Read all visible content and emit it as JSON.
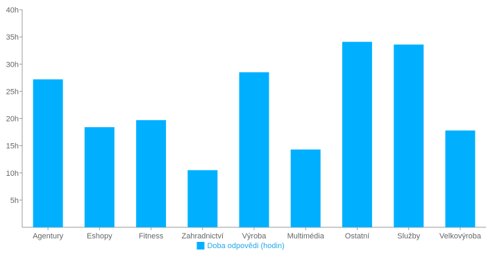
{
  "chart_data": {
    "type": "bar",
    "categories": [
      "Agentury",
      "Eshopy",
      "Fitness",
      "Zahradnictví",
      "Výroba",
      "Multimédia",
      "Ostatní",
      "Služby",
      "Velkovýroba"
    ],
    "series": [
      {
        "name": "Doba odpovědi (hodin)",
        "values": [
          27.2,
          18.4,
          19.7,
          10.5,
          28.5,
          14.3,
          34.1,
          33.6,
          17.8
        ],
        "color": "#00b0ff"
      }
    ],
    "ylim": [
      0,
      40
    ],
    "yticks": [
      5,
      10,
      15,
      20,
      25,
      30,
      35,
      40
    ],
    "ytick_suffix": "h",
    "grid": false,
    "legend_position": "bottom",
    "title": "",
    "xlabel": "",
    "ylabel": ""
  }
}
